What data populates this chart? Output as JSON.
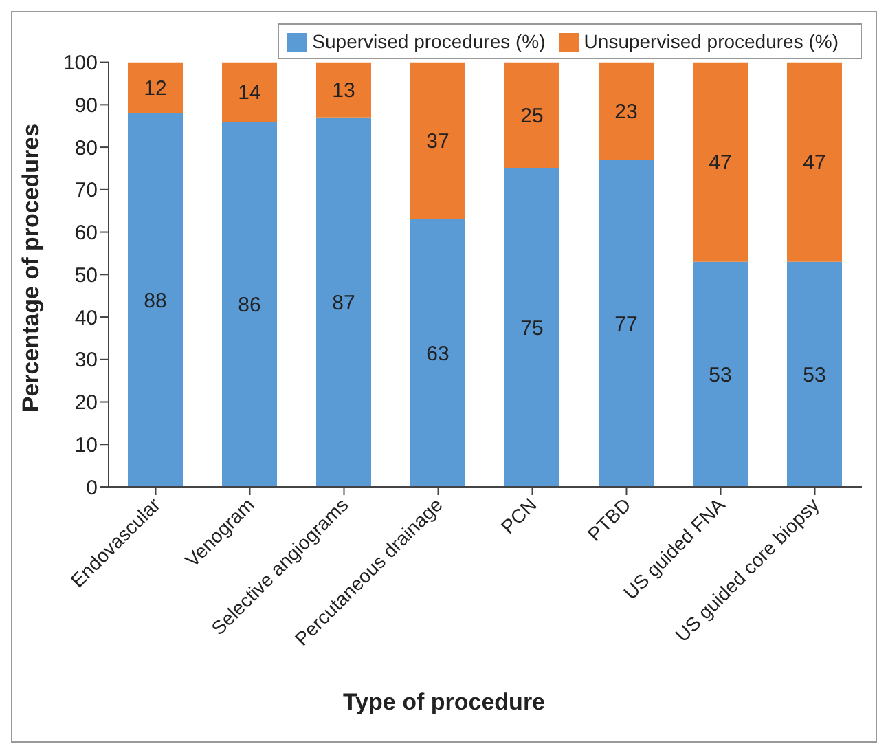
{
  "chart_data": {
    "type": "bar",
    "stacked": true,
    "xlabel": "Type of procedure",
    "ylabel": "Percentage of procedures",
    "categories": [
      "Endovascular",
      "Venogram",
      "Selective angiograms",
      "Percutaneous drainage",
      "PCN",
      "PTBD",
      "US guided FNA",
      "US guided core biopsy"
    ],
    "series": [
      {
        "name": "Supervised procedures (%)",
        "color": "#5b9bd5",
        "values": [
          88,
          86,
          87,
          63,
          75,
          77,
          53,
          53
        ]
      },
      {
        "name": "Unsupervised procedures (%)",
        "color": "#ed7d31",
        "values": [
          12,
          14,
          13,
          37,
          25,
          23,
          47,
          47
        ]
      }
    ],
    "ylim": [
      0,
      100
    ],
    "yticks": [
      0,
      10,
      20,
      30,
      40,
      50,
      60,
      70,
      80,
      90,
      100
    ],
    "data_labels": true,
    "legend": "top right"
  }
}
